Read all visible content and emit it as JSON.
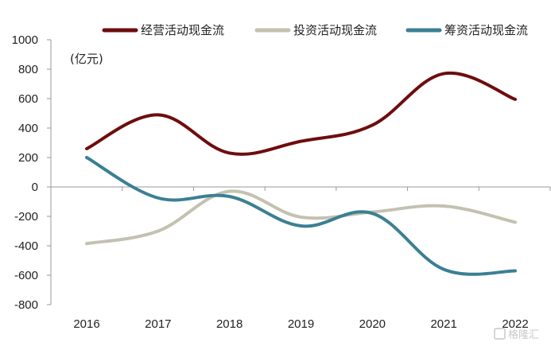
{
  "chart_data": {
    "type": "line",
    "unit_label": "(亿元)",
    "categories": [
      "2016",
      "2017",
      "2018",
      "2019",
      "2020",
      "2021",
      "2022"
    ],
    "ylim": [
      -800,
      1000
    ],
    "yticks": [
      "1000",
      "800",
      "600",
      "400",
      "200",
      "0",
      "-200",
      "-400",
      "-600",
      "-800"
    ],
    "legend_position": "top",
    "smooth": true,
    "series": [
      {
        "name": "经营活动现金流",
        "color": "#6e0d0d",
        "values": [
          260,
          490,
          230,
          310,
          420,
          770,
          595
        ]
      },
      {
        "name": "投资活动现金流",
        "color": "#c3c1b0",
        "values": [
          -385,
          -300,
          -30,
          -205,
          -170,
          -130,
          -240
        ]
      },
      {
        "name": "筹资活动现金流",
        "color": "#3b7f94",
        "values": [
          200,
          -75,
          -65,
          -265,
          -180,
          -560,
          -570
        ]
      }
    ]
  },
  "watermark": {
    "icon": "gelonghui-logo-icon",
    "text": "格隆汇"
  }
}
